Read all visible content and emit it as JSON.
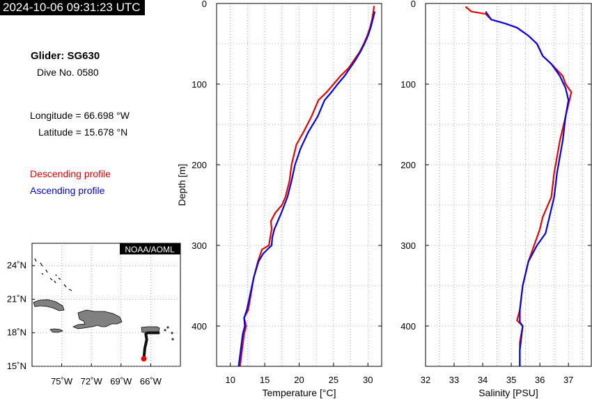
{
  "header": {
    "timestamp": "2024-10-06 09:31:23 UTC",
    "glider": "Glider: SG630",
    "dive": "Dive No. 0580",
    "longitude": "Longitude = 66.698 °W",
    "latitude": "Latitude = 15.678 °N"
  },
  "legend": {
    "descending": "Descending profile",
    "ascending": "Ascending profile"
  },
  "colors": {
    "descending": "#ee0000",
    "ascending": "#0000ee",
    "land": "#808080",
    "track": "#111111"
  },
  "map": {
    "credit": "NOAA/AOML",
    "lon_range": [
      -78,
      -63
    ],
    "lat_range": [
      15,
      26
    ],
    "x_ticks": [
      "75˚W",
      "72˚W",
      "69˚W",
      "66˚W"
    ],
    "x_tick_values": [
      -75,
      -72,
      -69,
      -66
    ],
    "y_ticks": [
      "15˚N",
      "18˚N",
      "21˚N",
      "24˚N"
    ],
    "y_tick_values": [
      15,
      18,
      21,
      24
    ],
    "track": [
      [
        -65.1,
        18.0
      ],
      [
        -66.3,
        18.0
      ],
      [
        -66.5,
        17.9
      ],
      [
        -66.4,
        17.4
      ],
      [
        -66.6,
        16.6
      ],
      [
        -66.7,
        15.68
      ]
    ],
    "glider_position": [
      -66.698,
      15.678
    ]
  },
  "chart_data": [
    {
      "type": "line",
      "xlabel": "Temperature [°C]",
      "ylabel": "Depth [m]",
      "xlim": [
        8,
        32
      ],
      "ylim": [
        450,
        0
      ],
      "x_ticks": [
        10,
        15,
        20,
        25,
        30
      ],
      "y_ticks": [
        0,
        100,
        200,
        300,
        400
      ],
      "grid": true,
      "series": [
        {
          "name": "Descending profile",
          "points": [
            [
              30.9,
              3
            ],
            [
              30.8,
              10
            ],
            [
              30.6,
              20
            ],
            [
              30.3,
              30
            ],
            [
              29.9,
              40
            ],
            [
              29.4,
              50
            ],
            [
              28.8,
              60
            ],
            [
              28.0,
              70
            ],
            [
              27.2,
              80
            ],
            [
              26.0,
              90
            ],
            [
              25.0,
              100
            ],
            [
              24.0,
              110
            ],
            [
              22.8,
              120
            ],
            [
              21.8,
              140
            ],
            [
              20.6,
              160
            ],
            [
              19.6,
              175
            ],
            [
              18.9,
              200
            ],
            [
              18.6,
              220
            ],
            [
              18.0,
              240
            ],
            [
              17.5,
              250
            ],
            [
              16.5,
              260
            ],
            [
              15.9,
              270
            ],
            [
              16.0,
              280
            ],
            [
              15.8,
              290
            ],
            [
              15.6,
              300
            ],
            [
              14.6,
              305
            ],
            [
              14.0,
              320
            ],
            [
              13.4,
              340
            ],
            [
              13.0,
              360
            ],
            [
              12.6,
              380
            ],
            [
              12.0,
              390
            ],
            [
              12.3,
              400
            ],
            [
              12.0,
              410
            ],
            [
              11.7,
              430
            ],
            [
              11.4,
              450
            ]
          ]
        },
        {
          "name": "Ascending profile",
          "points": [
            [
              31.0,
              10
            ],
            [
              30.7,
              20
            ],
            [
              30.4,
              30
            ],
            [
              30.0,
              40
            ],
            [
              29.5,
              50
            ],
            [
              28.9,
              60
            ],
            [
              28.2,
              70
            ],
            [
              27.4,
              80
            ],
            [
              26.6,
              90
            ],
            [
              25.6,
              100
            ],
            [
              24.7,
              110
            ],
            [
              23.7,
              120
            ],
            [
              22.7,
              140
            ],
            [
              21.3,
              160
            ],
            [
              20.2,
              180
            ],
            [
              19.4,
              200
            ],
            [
              18.9,
              220
            ],
            [
              18.3,
              240
            ],
            [
              17.4,
              260
            ],
            [
              16.4,
              280
            ],
            [
              16.1,
              290
            ],
            [
              16.0,
              300
            ],
            [
              14.8,
              310
            ],
            [
              14.1,
              320
            ],
            [
              13.4,
              340
            ],
            [
              12.9,
              360
            ],
            [
              12.4,
              380
            ],
            [
              12.0,
              390
            ],
            [
              12.1,
              400
            ],
            [
              11.8,
              410
            ],
            [
              11.5,
              430
            ],
            [
              11.2,
              450
            ]
          ]
        }
      ]
    },
    {
      "type": "line",
      "xlabel": "Salinity [PSU]",
      "ylabel": "",
      "xlim": [
        32,
        37.8
      ],
      "ylim": [
        450,
        0
      ],
      "x_ticks": [
        32,
        33,
        34,
        35,
        36,
        37
      ],
      "y_ticks": [
        0,
        100,
        200,
        300,
        400
      ],
      "grid": true,
      "series": [
        {
          "name": "Descending profile",
          "points": [
            [
              33.4,
              4
            ],
            [
              33.6,
              10
            ],
            [
              34.1,
              13
            ],
            [
              34.3,
              20
            ],
            [
              34.8,
              25
            ],
            [
              35.2,
              30
            ],
            [
              35.6,
              40
            ],
            [
              35.9,
              50
            ],
            [
              36.1,
              65
            ],
            [
              36.4,
              75
            ],
            [
              36.8,
              90
            ],
            [
              36.9,
              100
            ],
            [
              37.1,
              110
            ],
            [
              37.0,
              125
            ],
            [
              36.9,
              140
            ],
            [
              36.7,
              170
            ],
            [
              36.5,
              210
            ],
            [
              36.4,
              240
            ],
            [
              36.1,
              265
            ],
            [
              36.0,
              280
            ],
            [
              35.8,
              300
            ],
            [
              35.6,
              320
            ],
            [
              35.4,
              350
            ],
            [
              35.3,
              380
            ],
            [
              35.2,
              393
            ],
            [
              35.4,
              400
            ],
            [
              35.3,
              420
            ],
            [
              35.3,
              450
            ]
          ]
        },
        {
          "name": "Ascending profile",
          "points": [
            [
              34.1,
              10
            ],
            [
              34.3,
              20
            ],
            [
              34.8,
              25
            ],
            [
              35.2,
              30
            ],
            [
              35.6,
              40
            ],
            [
              35.9,
              50
            ],
            [
              36.1,
              65
            ],
            [
              36.4,
              75
            ],
            [
              36.7,
              90
            ],
            [
              36.9,
              105
            ],
            [
              37.0,
              120
            ],
            [
              36.9,
              140
            ],
            [
              36.8,
              170
            ],
            [
              36.6,
              210
            ],
            [
              36.5,
              240
            ],
            [
              36.3,
              270
            ],
            [
              36.2,
              285
            ],
            [
              35.9,
              300
            ],
            [
              35.6,
              320
            ],
            [
              35.4,
              350
            ],
            [
              35.3,
              380
            ],
            [
              35.3,
              395
            ],
            [
              35.4,
              400
            ],
            [
              35.3,
              430
            ],
            [
              35.3,
              450
            ]
          ]
        }
      ]
    }
  ]
}
